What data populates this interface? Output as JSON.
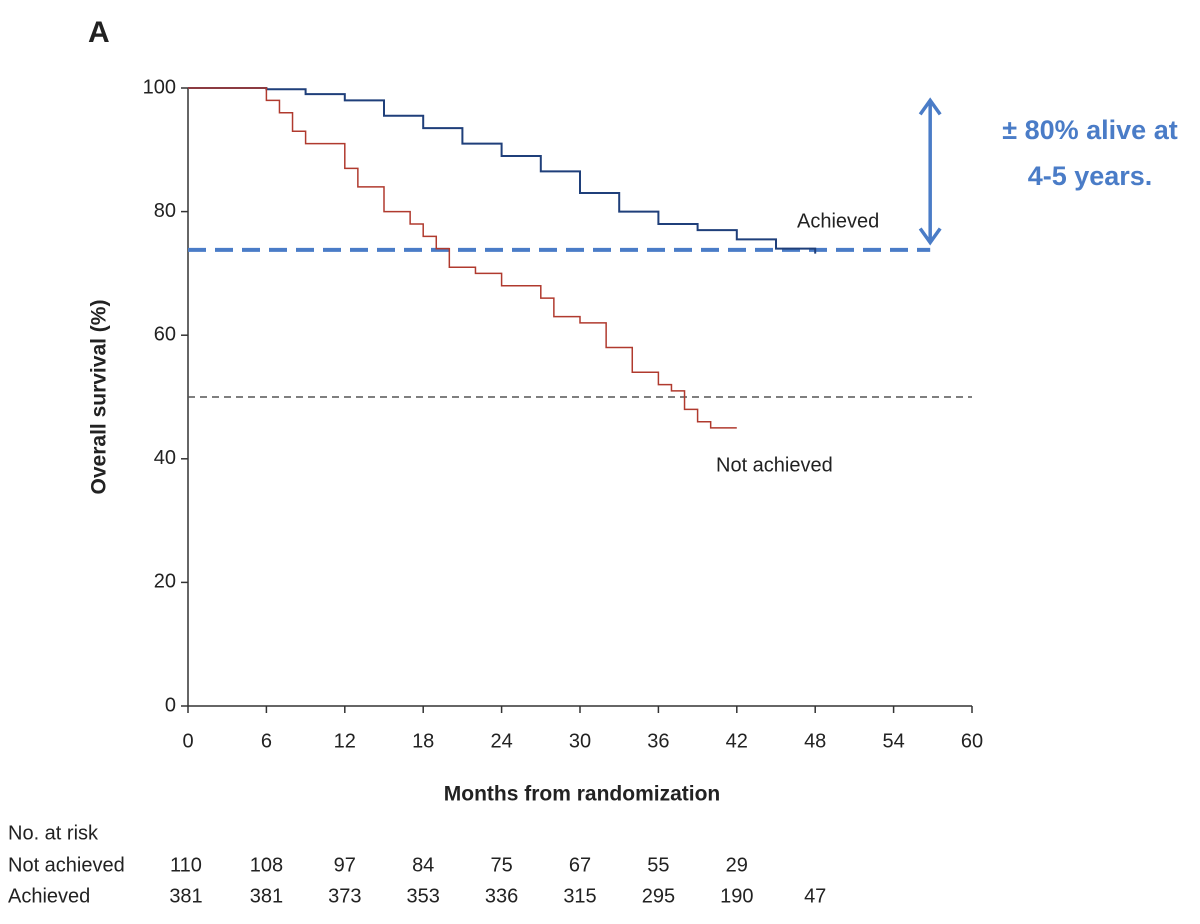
{
  "chart_data": {
    "type": "step",
    "panel_label": "A",
    "xlabel": "Months from randomization",
    "ylabel": "Overall survival (%)",
    "xlim": [
      0,
      60
    ],
    "ylim": [
      0,
      100
    ],
    "xticks": [
      0,
      6,
      12,
      18,
      24,
      30,
      36,
      42,
      48,
      54,
      60
    ],
    "yticks": [
      0,
      20,
      40,
      60,
      80,
      100
    ],
    "series": [
      {
        "name": "Achieved",
        "color": "#1f3f7a",
        "x": [
          0,
          3,
          6,
          9,
          12,
          15,
          18,
          21,
          24,
          27,
          30,
          33,
          36,
          39,
          42,
          45,
          48
        ],
        "values": [
          100,
          100,
          99.8,
          99,
          98,
          95.5,
          93.5,
          91,
          89,
          86.5,
          83,
          80,
          78,
          77,
          75.5,
          74,
          73.2
        ]
      },
      {
        "name": "Not achieved",
        "color": "#b03a2e",
        "x": [
          0,
          5,
          6,
          7,
          8,
          9,
          12,
          13,
          15,
          17,
          18,
          19,
          20,
          22,
          24,
          27,
          28,
          30,
          32,
          34,
          36,
          37,
          38,
          39,
          40,
          42
        ],
        "values": [
          100,
          100,
          98,
          96,
          93,
          91,
          87,
          84,
          80,
          78,
          76,
          74,
          71,
          70,
          68,
          66,
          63,
          62,
          58,
          54,
          52,
          51,
          48,
          46,
          45,
          45
        ]
      }
    ],
    "reference_lines": [
      {
        "value": 50,
        "x": [
          0,
          60
        ],
        "color": "#555555"
      },
      {
        "value": 73.8,
        "x": [
          0,
          56.8
        ],
        "color": "#4a7cc7"
      }
    ],
    "arrow": {
      "x": 56.8,
      "y": [
        75,
        98
      ],
      "color": "#4a7cc7"
    },
    "annotation": {
      "lines": [
        "± 80% alive at",
        "4-5 years."
      ],
      "color": "#4a7cc7"
    },
    "risk_table": {
      "title": "No. at risk",
      "times": [
        0,
        6,
        12,
        18,
        24,
        30,
        36,
        42,
        48
      ],
      "rows": [
        {
          "name": "Not achieved",
          "values": [
            110,
            108,
            97,
            84,
            75,
            67,
            55,
            29
          ]
        },
        {
          "name": "Achieved",
          "values": [
            381,
            381,
            373,
            353,
            336,
            315,
            295,
            190,
            47
          ]
        }
      ]
    }
  }
}
